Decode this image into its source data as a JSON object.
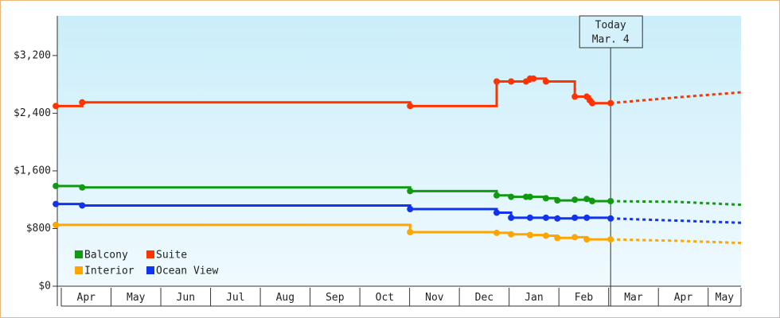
{
  "chart_data": {
    "type": "step-line",
    "annotation": {
      "title": "Today",
      "date": "Mar. 4",
      "x": 11.04
    },
    "xlim": [
      -0.08,
      13.66
    ],
    "xticks": [
      {
        "value": 0,
        "label": "Apr"
      },
      {
        "value": 1,
        "label": "May"
      },
      {
        "value": 2,
        "label": "Jun"
      },
      {
        "value": 3,
        "label": "Jul"
      },
      {
        "value": 4,
        "label": "Aug"
      },
      {
        "value": 5,
        "label": "Sep"
      },
      {
        "value": 6,
        "label": "Oct"
      },
      {
        "value": 7,
        "label": "Nov"
      },
      {
        "value": 8,
        "label": "Dec"
      },
      {
        "value": 9,
        "label": "Jan"
      },
      {
        "value": 10,
        "label": "Feb"
      },
      {
        "value": 11,
        "label": "Mar"
      },
      {
        "value": 12,
        "label": "Apr"
      },
      {
        "value": 13,
        "label": "May"
      }
    ],
    "ylim": [
      0,
      3750
    ],
    "yticks": [
      {
        "value": 0,
        "label": "$0"
      },
      {
        "value": 800,
        "label": "$800"
      },
      {
        "value": 1600,
        "label": "$1,600"
      },
      {
        "value": 2400,
        "label": "$2,400"
      },
      {
        "value": 3200,
        "label": "$3,200"
      }
    ],
    "series": [
      {
        "name": "Balcony",
        "color": "#119911",
        "x": [
          -0.11,
          0.42,
          7.01,
          8.75,
          9.04,
          9.34,
          9.42,
          9.74,
          9.97,
          10.32,
          10.56,
          10.67,
          11.04
        ],
        "values": [
          1390,
          1370,
          1320,
          1260,
          1240,
          1240,
          1240,
          1220,
          1190,
          1200,
          1210,
          1180,
          1180
        ],
        "forecast_x": [
          11.04,
          12.37,
          13.66
        ],
        "forecast_values": [
          1180,
          1170,
          1130
        ]
      },
      {
        "name": "Suite",
        "color": "#ff3300",
        "x": [
          -0.11,
          0.42,
          7.01,
          8.75,
          9.04,
          9.34,
          9.42,
          9.49,
          9.74,
          10.32,
          10.56,
          10.62,
          10.67,
          11.04
        ],
        "values": [
          2500,
          2550,
          2500,
          2840,
          2840,
          2840,
          2880,
          2880,
          2840,
          2630,
          2630,
          2580,
          2540,
          2540
        ],
        "forecast_x": [
          11.04,
          12.37,
          13.66
        ],
        "forecast_values": [
          2540,
          2620,
          2690
        ]
      },
      {
        "name": "Interior",
        "color": "#ffa500",
        "x": [
          -0.11,
          7.01,
          8.75,
          9.04,
          9.42,
          9.74,
          9.97,
          10.32,
          10.56,
          11.04
        ],
        "values": [
          850,
          750,
          740,
          720,
          710,
          700,
          670,
          680,
          650,
          650
        ],
        "forecast_x": [
          11.04,
          12.37,
          13.66
        ],
        "forecast_values": [
          650,
          630,
          600
        ]
      },
      {
        "name": "Ocean View",
        "color": "#1133ee",
        "x": [
          -0.11,
          0.42,
          7.01,
          8.75,
          9.04,
          9.42,
          9.74,
          9.97,
          10.32,
          10.56,
          11.04
        ],
        "values": [
          1140,
          1120,
          1070,
          1020,
          950,
          950,
          950,
          940,
          950,
          950,
          940
        ],
        "forecast_x": [
          11.04,
          12.37,
          13.66
        ],
        "forecast_values": [
          940,
          910,
          880
        ]
      }
    ]
  }
}
